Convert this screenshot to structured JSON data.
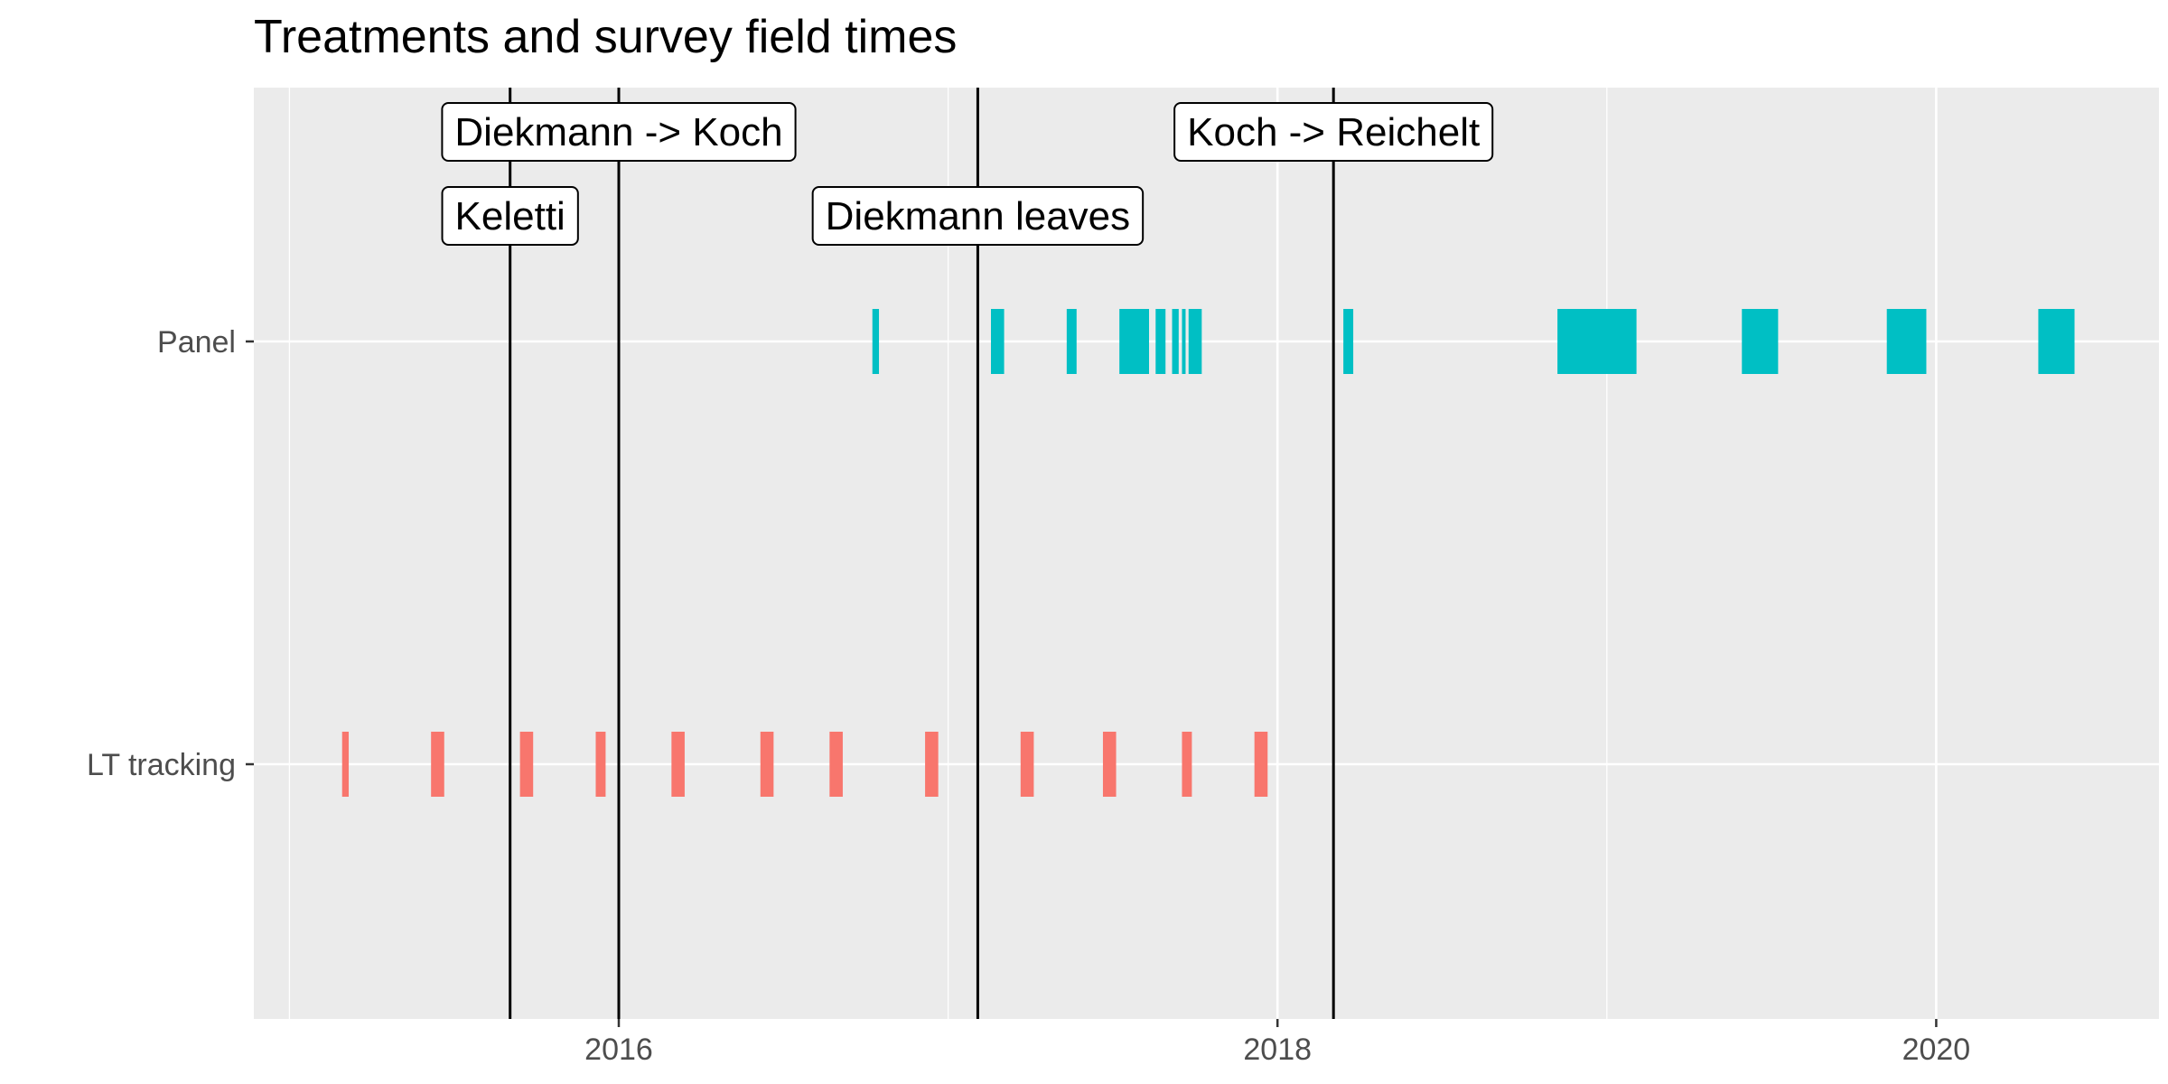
{
  "chart_data": {
    "type": "timeline",
    "title": "Treatments and survey field times",
    "xlabel": "",
    "ylabel": "",
    "x_ticks": [
      "2016",
      "2018",
      "2020"
    ],
    "x_tick_values": [
      2016,
      2018,
      2020
    ],
    "xlim": [
      2014.9,
      2020.7
    ],
    "categories": [
      "LT tracking",
      "Panel"
    ],
    "colors": {
      "LT tracking": "#F8766D",
      "Panel": "#00BFC4",
      "panel_background": "#EBEBEB",
      "grid": "#FFFFFF",
      "vline": "#000000"
    },
    "grid": true,
    "legend": "none",
    "series": [
      {
        "category": "LT tracking",
        "field_times": [
          [
            2015.16,
            2015.18
          ],
          [
            2015.43,
            2015.47
          ],
          [
            2015.7,
            2015.74
          ],
          [
            2015.93,
            2015.96
          ],
          [
            2016.16,
            2016.2
          ],
          [
            2016.43,
            2016.47
          ],
          [
            2016.64,
            2016.68
          ],
          [
            2016.93,
            2016.97
          ],
          [
            2017.22,
            2017.26
          ],
          [
            2017.47,
            2017.51
          ],
          [
            2017.71,
            2017.74
          ],
          [
            2017.93,
            2017.97
          ]
        ]
      },
      {
        "category": "Panel",
        "field_times": [
          [
            2016.77,
            2016.79
          ],
          [
            2017.13,
            2017.17
          ],
          [
            2017.36,
            2017.39
          ],
          [
            2017.52,
            2017.61
          ],
          [
            2017.63,
            2017.66
          ],
          [
            2017.68,
            2017.7
          ],
          [
            2017.71,
            2017.72
          ],
          [
            2017.73,
            2017.77
          ],
          [
            2018.2,
            2018.23
          ],
          [
            2018.85,
            2019.09
          ],
          [
            2019.41,
            2019.52
          ],
          [
            2019.85,
            2019.97
          ],
          [
            2020.31,
            2020.42
          ]
        ]
      }
    ],
    "annotations": [
      {
        "label": "Keletti",
        "x": 2015.67,
        "level": "lower"
      },
      {
        "label": "Diekmann -> Koch",
        "x": 2016.0,
        "level": "upper"
      },
      {
        "label": "Diekmann leaves",
        "x": 2017.09,
        "level": "lower"
      },
      {
        "label": "Koch -> Reichelt",
        "x": 2018.17,
        "level": "upper"
      }
    ]
  }
}
